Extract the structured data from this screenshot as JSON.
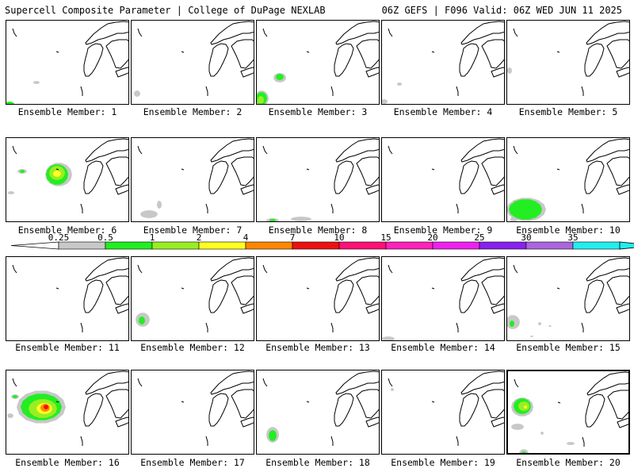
{
  "header": {
    "left": "Supercell Composite Parameter | College of DuPage NEXLAB",
    "right": "06Z GEFS | F096 Valid: 06Z WED JUN 11 2025"
  },
  "legend": {
    "labels": [
      "0.25",
      "0.5",
      "1",
      "2",
      "4",
      "7",
      "10",
      "15",
      "20",
      "25",
      "30",
      "35"
    ],
    "colors": [
      "#c8c8c8",
      "#22ee22",
      "#99ee22",
      "#ffff22",
      "#ff8800",
      "#ee1111",
      "#ff1177",
      "#ff22bb",
      "#ee22ee",
      "#8822ee",
      "#aa66dd",
      "#22eeee"
    ]
  },
  "panels": [
    {
      "label": "Ensemble Member: 1"
    },
    {
      "label": "Ensemble Member: 2"
    },
    {
      "label": "Ensemble Member: 3"
    },
    {
      "label": "Ensemble Member: 4"
    },
    {
      "label": "Ensemble Member: 5"
    },
    {
      "label": "Ensemble Member: 6"
    },
    {
      "label": "Ensemble Member: 7"
    },
    {
      "label": "Ensemble Member: 8"
    },
    {
      "label": "Ensemble Member: 9"
    },
    {
      "label": "Ensemble Member: 10"
    },
    {
      "label": "Ensemble Member: 11"
    },
    {
      "label": "Ensemble Member: 12"
    },
    {
      "label": "Ensemble Member: 13"
    },
    {
      "label": "Ensemble Member: 14"
    },
    {
      "label": "Ensemble Member: 15"
    },
    {
      "label": "Ensemble Member: 16"
    },
    {
      "label": "Ensemble Member: 17"
    },
    {
      "label": "Ensemble Member: 18"
    },
    {
      "label": "Ensemble Member: 19"
    },
    {
      "label": "Ensemble Member: 20"
    }
  ]
}
